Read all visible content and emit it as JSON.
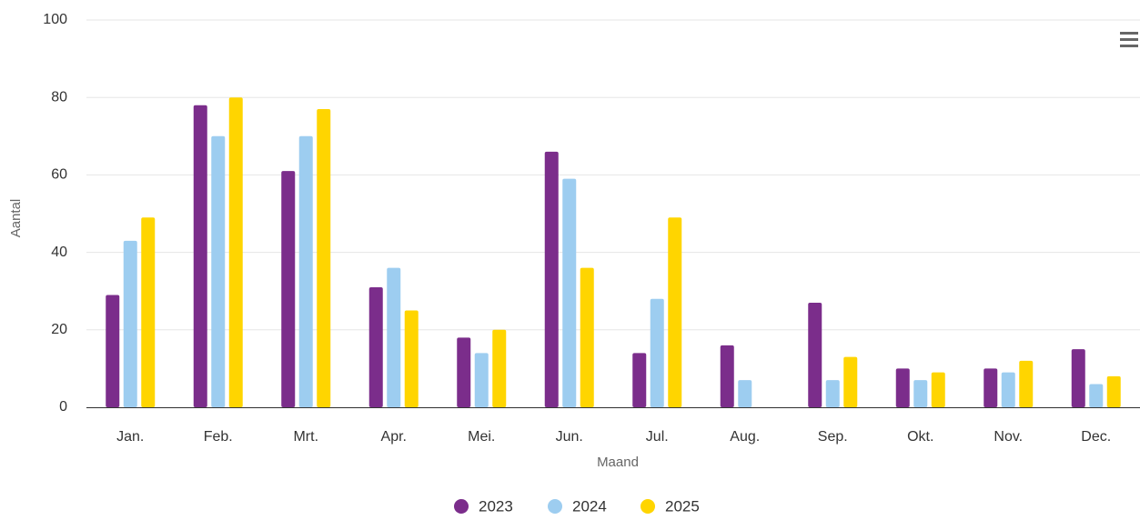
{
  "chart_data": {
    "type": "bar",
    "x_label": "Maand",
    "y_label": "Aantal",
    "categories": [
      "Jan.",
      "Feb.",
      "Mrt.",
      "Apr.",
      "Mei.",
      "Jun.",
      "Jul.",
      "Aug.",
      "Sep.",
      "Okt.",
      "Nov.",
      "Dec."
    ],
    "series": [
      {
        "name": "2023",
        "color": "#7b2d8b",
        "values": [
          29,
          78,
          61,
          31,
          18,
          66,
          14,
          16,
          27,
          10,
          10,
          15
        ]
      },
      {
        "name": "2024",
        "color": "#9dcdf0",
        "values": [
          43,
          70,
          70,
          36,
          14,
          59,
          28,
          7,
          7,
          7,
          9,
          6
        ]
      },
      {
        "name": "2025",
        "color": "#ffd500",
        "values": [
          49,
          80,
          77,
          25,
          20,
          36,
          49,
          null,
          13,
          9,
          12,
          8
        ]
      }
    ],
    "ylim": [
      0,
      100
    ],
    "yticks": [
      0,
      20,
      40,
      60,
      80,
      100
    ],
    "grid": true,
    "legend": "bottom"
  }
}
